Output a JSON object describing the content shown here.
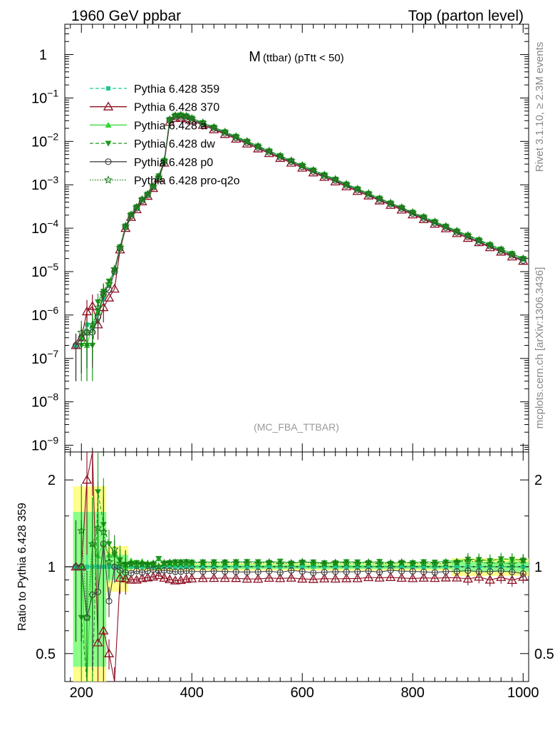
{
  "header": {
    "left": "1960 GeV ppbar",
    "right": "Top (parton level)"
  },
  "side_labels": {
    "rivet": "Rivet 3.1.10, ≥ 2.3M events",
    "mcplots": "mcplots.cern.ch [arXiv:1306.3436]"
  },
  "plot_title_main": "M",
  "plot_title_sub": "(ttbar) (pTtt < 50)",
  "analysis_tag": "(MC_FBA_TTBAR)",
  "ratio_ylabel": "Ratio to Pythia 6.428 359",
  "colors": {
    "p359": "#1ec98c",
    "p370": "#8b0f22",
    "pa": "#33d633",
    "pdw": "#1f9a1f",
    "pp0": "#444444",
    "pq2o": "#157a15",
    "band_yellow": "#ffff88",
    "band_green": "#88ff88"
  },
  "chart_data": {
    "type": "line",
    "xlim": [
      170,
      1010
    ],
    "main_ylim": [
      7e-10,
      5.0
    ],
    "main_yscale": "log",
    "main_yticks": [
      {
        "v": 1,
        "t": "1"
      },
      {
        "v": 0.1,
        "t": "10",
        "e": "−1"
      },
      {
        "v": 0.01,
        "t": "10",
        "e": "−2"
      },
      {
        "v": 0.001,
        "t": "10",
        "e": "−3"
      },
      {
        "v": 0.0001,
        "t": "10",
        "e": "−4"
      },
      {
        "v": 1e-05,
        "t": "10",
        "e": "−5"
      },
      {
        "v": 1e-06,
        "t": "10",
        "e": "−6"
      },
      {
        "v": 1e-07,
        "t": "10",
        "e": "−7"
      },
      {
        "v": 1e-08,
        "t": "10",
        "e": "−8"
      },
      {
        "v": 1e-09,
        "t": "10",
        "e": "−9"
      }
    ],
    "ratio_ylim": [
      0.4,
      2.5
    ],
    "ratio_yscale": "log",
    "ratio_yticks": [
      {
        "v": 0.5,
        "t": "0.5"
      },
      {
        "v": 1,
        "t": "1"
      },
      {
        "v": 2,
        "t": "2"
      }
    ],
    "xticks": [
      200,
      400,
      600,
      800,
      1000
    ],
    "x": [
      190,
      200,
      210,
      220,
      230,
      240,
      250,
      260,
      270,
      280,
      290,
      300,
      310,
      320,
      330,
      340,
      350,
      360,
      370,
      380,
      390,
      400,
      420,
      440,
      460,
      480,
      500,
      520,
      540,
      560,
      580,
      600,
      620,
      640,
      660,
      680,
      700,
      720,
      740,
      760,
      780,
      800,
      820,
      840,
      860,
      880,
      900,
      920,
      940,
      960,
      980,
      1000
    ],
    "series": [
      {
        "name": "Pythia 6.428 359",
        "key": "p359",
        "style": "dashed",
        "marker": "square",
        "values": [
          2e-07,
          3e-07,
          6e-07,
          5e-07,
          1.1e-06,
          2.5e-06,
          5e-06,
          1e-05,
          3.5e-05,
          0.00011,
          0.0002,
          0.0003,
          0.00045,
          0.0006,
          0.0009,
          0.0015,
          0.0035,
          0.031,
          0.038,
          0.039,
          0.037,
          0.033,
          0.026,
          0.0205,
          0.016,
          0.0125,
          0.0097,
          0.0075,
          0.0058,
          0.0045,
          0.0035,
          0.0027,
          0.0021,
          0.00165,
          0.0013,
          0.001,
          0.00078,
          0.00061,
          0.00047,
          0.00037,
          0.00029,
          0.000225,
          0.000175,
          0.000137,
          0.000107,
          8.3e-05,
          6.5e-05,
          5.1e-05,
          4e-05,
          3.1e-05,
          2.45e-05,
          1.9e-05
        ]
      },
      {
        "name": "Pythia 6.428 370",
        "key": "p370",
        "style": "solid",
        "marker": "triangle-open",
        "values": [
          2e-07,
          3e-07,
          1.2e-06,
          1.6e-06,
          6e-07,
          1.5e-06,
          2.5e-06,
          4e-06,
          3.2e-05,
          0.0001,
          0.00018,
          0.00027,
          0.00041,
          0.00055,
          0.00083,
          0.0014,
          0.0032,
          0.028,
          0.034,
          0.035,
          0.0335,
          0.03,
          0.0237,
          0.0187,
          0.0146,
          0.0114,
          0.0088,
          0.0068,
          0.0053,
          0.0041,
          0.0032,
          0.00245,
          0.0019,
          0.0015,
          0.00118,
          0.00091,
          0.00071,
          0.00056,
          0.00043,
          0.00034,
          0.000265,
          0.000205,
          0.00016,
          0.000125,
          9.8e-05,
          7.6e-05,
          5.9e-05,
          4.7e-05,
          3.6e-05,
          2.85e-05,
          2.2e-05,
          1.75e-05
        ]
      },
      {
        "name": "Pythia 6.428 a",
        "key": "pa",
        "style": "solid",
        "marker": "triangle-up",
        "values": [
          null,
          3e-07,
          2e-07,
          6e-07,
          1.2e-06,
          3e-06,
          5.5e-06,
          1.1e-05,
          3.6e-05,
          0.00011,
          0.00021,
          0.00031,
          0.00047,
          0.00062,
          0.00093,
          0.0016,
          0.0036,
          0.032,
          0.039,
          0.0405,
          0.0385,
          0.0342,
          0.027,
          0.0213,
          0.0166,
          0.013,
          0.0101,
          0.0078,
          0.006,
          0.0047,
          0.0036,
          0.0028,
          0.00218,
          0.0017,
          0.00135,
          0.00104,
          0.00081,
          0.00063,
          0.00049,
          0.00038,
          0.0003,
          0.000233,
          0.000182,
          0.000142,
          0.000112,
          8.7e-05,
          6.9e-05,
          5.4e-05,
          4.2e-05,
          3.3e-05,
          2.6e-05,
          2e-05
        ]
      },
      {
        "name": "Pythia 6.428 dw",
        "key": "pdw",
        "style": "dashed",
        "marker": "triangle-down",
        "values": [
          null,
          2e-07,
          2e-07,
          2e-07,
          2e-06,
          3.5e-06,
          6e-06,
          1.1e-05,
          3.7e-05,
          0.000112,
          0.000205,
          0.00031,
          0.00046,
          0.00061,
          0.00092,
          0.0016,
          0.0036,
          0.032,
          0.0395,
          0.0405,
          0.0385,
          0.0342,
          0.027,
          0.0213,
          0.0166,
          0.013,
          0.0101,
          0.0078,
          0.006,
          0.0047,
          0.0036,
          0.0028,
          0.00218,
          0.0017,
          0.00134,
          0.00104,
          0.00081,
          0.00063,
          0.00049,
          0.00038,
          0.0003,
          0.000232,
          0.000182,
          0.000142,
          0.000111,
          8.6e-05,
          6.9e-05,
          5.4e-05,
          4.2e-05,
          3.3e-05,
          2.6e-05,
          2e-05
        ]
      },
      {
        "name": "Pythia 6.428 p0",
        "key": "pp0",
        "style": "solid",
        "marker": "circle-open",
        "values": [
          2e-07,
          3e-07,
          4e-07,
          4e-07,
          9e-07,
          3e-06,
          3.8e-06,
          1e-05,
          3.4e-05,
          0.000105,
          0.00019,
          0.00029,
          0.00043,
          0.00058,
          0.00088,
          0.00145,
          0.0034,
          0.03,
          0.0365,
          0.0375,
          0.0358,
          0.0318,
          0.025,
          0.0198,
          0.0154,
          0.012,
          0.0093,
          0.0072,
          0.0056,
          0.0043,
          0.0034,
          0.0026,
          0.002,
          0.00158,
          0.00125,
          0.00096,
          0.00075,
          0.00059,
          0.00045,
          0.00036,
          0.00028,
          0.000217,
          0.000168,
          0.000131,
          0.000103,
          8e-05,
          6.3e-05,
          4.9e-05,
          3.85e-05,
          3e-05,
          2.35e-05,
          1.8e-05
        ]
      },
      {
        "name": "Pythia 6.428 pro-q2o",
        "key": "pq2o",
        "style": "dotted",
        "marker": "star-open",
        "values": [
          null,
          4e-07,
          4e-07,
          6e-07,
          1.5e-06,
          3.3e-06,
          5.2e-06,
          1.15e-05,
          3.6e-05,
          0.000112,
          0.000205,
          0.000305,
          0.00046,
          0.00061,
          0.00092,
          0.0015,
          0.0036,
          0.032,
          0.0392,
          0.0402,
          0.0382,
          0.034,
          0.0268,
          0.0211,
          0.0165,
          0.0129,
          0.01,
          0.0077,
          0.006,
          0.0046,
          0.0036,
          0.0028,
          0.00216,
          0.00169,
          0.00134,
          0.00103,
          0.0008,
          0.00063,
          0.00048,
          0.00038,
          0.0003,
          0.000231,
          0.00018,
          0.00014,
          0.00011,
          8.6e-05,
          6.8e-05,
          5.3e-05,
          4.1e-05,
          3.2e-05,
          2.5e-05,
          2e-05
        ]
      }
    ]
  }
}
